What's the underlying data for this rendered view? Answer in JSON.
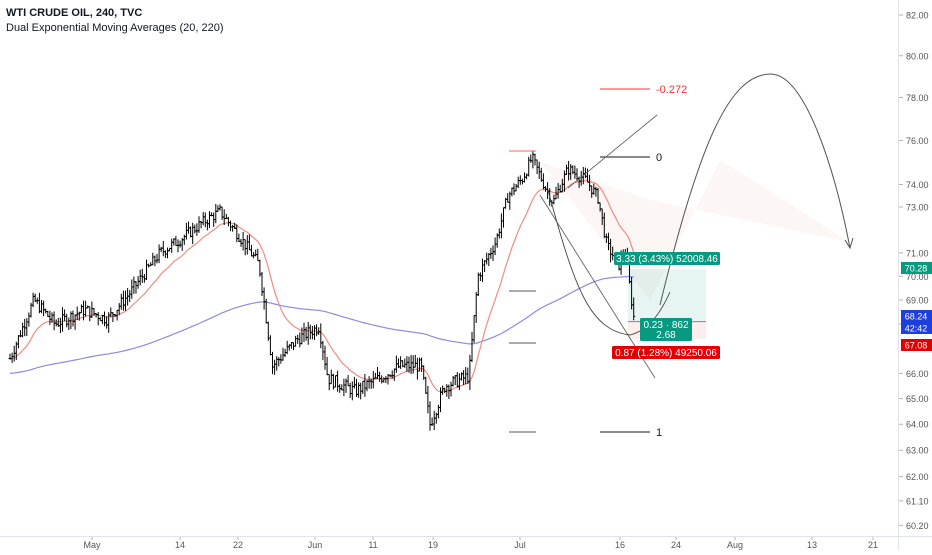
{
  "chart_data": {
    "type": "candlestick",
    "title": "WTI CRUDE OIL, 240, TVC",
    "indicator": "Dual Exponential Moving Averages (20, 220)",
    "y_axis": {
      "ticks": [
        "82.00",
        "80.00",
        "78.00",
        "76.00",
        "74.00",
        "73.00",
        "71.00",
        "70.00",
        "69.00",
        "68.00",
        "66.00",
        "65.00",
        "64.00",
        "63.00",
        "62.00",
        "61.10",
        "60.20"
      ],
      "range": [
        60.2,
        82.0
      ],
      "log_scale": true,
      "side": "right"
    },
    "x_axis": {
      "ticks": [
        "May",
        "14",
        "22",
        "Jun",
        "11",
        "19",
        "Jul",
        "16",
        "24",
        "Aug",
        "13",
        "21"
      ]
    },
    "price_badges": [
      {
        "text": "70.28",
        "color": "#089981"
      },
      {
        "text": "68.24",
        "color": "#1e3fdc"
      },
      {
        "text": "42:42",
        "color": "#1e3fdc"
      },
      {
        "text": "67.08",
        "color": "#e00000"
      }
    ],
    "fib_levels": [
      {
        "label": "-0.272",
        "color": "#ff3030"
      },
      {
        "label": "0",
        "color": "#131722"
      },
      {
        "label": "1",
        "color": "#131722"
      }
    ],
    "position": {
      "target_label": "3.33 (3.43%) 52008.46",
      "entry_label": "0.23 · 862",
      "ratio_label": "2.68",
      "stop_label": "0.87 (1.28%) 49250.06",
      "target_color": "#089981",
      "stop_color": "#e00000"
    },
    "ema_colors": {
      "fast": "#f28b82",
      "slow": "#8c8ce0"
    },
    "price_key_points": [
      [
        0.0,
        66.6
      ],
      [
        0.8,
        69.0
      ],
      [
        1.5,
        68.0
      ],
      [
        2.5,
        68.6
      ],
      [
        3.25,
        68.2
      ],
      [
        4.0,
        69.3
      ],
      [
        5.0,
        71.0
      ],
      [
        5.7,
        71.6
      ],
      [
        6.4,
        72.3
      ],
      [
        7.0,
        72.8
      ],
      [
        7.6,
        71.8
      ],
      [
        8.3,
        70.5
      ],
      [
        8.75,
        66.3
      ],
      [
        9.6,
        67.4
      ],
      [
        10.3,
        67.9
      ],
      [
        10.6,
        65.8
      ],
      [
        11.5,
        65.3
      ],
      [
        12.3,
        65.8
      ],
      [
        13.0,
        66.3
      ],
      [
        13.7,
        66.3
      ],
      [
        14.0,
        64.0
      ],
      [
        14.5,
        65.5
      ],
      [
        15.3,
        65.9
      ],
      [
        15.6,
        70.0
      ],
      [
        16.2,
        71.5
      ],
      [
        16.6,
        73.5
      ],
      [
        17.1,
        74.3
      ],
      [
        17.4,
        75.2
      ],
      [
        17.8,
        74.0
      ],
      [
        18.1,
        73.2
      ],
      [
        18.6,
        74.7
      ],
      [
        19.2,
        74.2
      ],
      [
        19.6,
        73.4
      ],
      [
        19.9,
        71.3
      ],
      [
        20.3,
        70.5
      ],
      [
        20.5,
        71.1
      ],
      [
        20.8,
        68.2
      ]
    ]
  }
}
